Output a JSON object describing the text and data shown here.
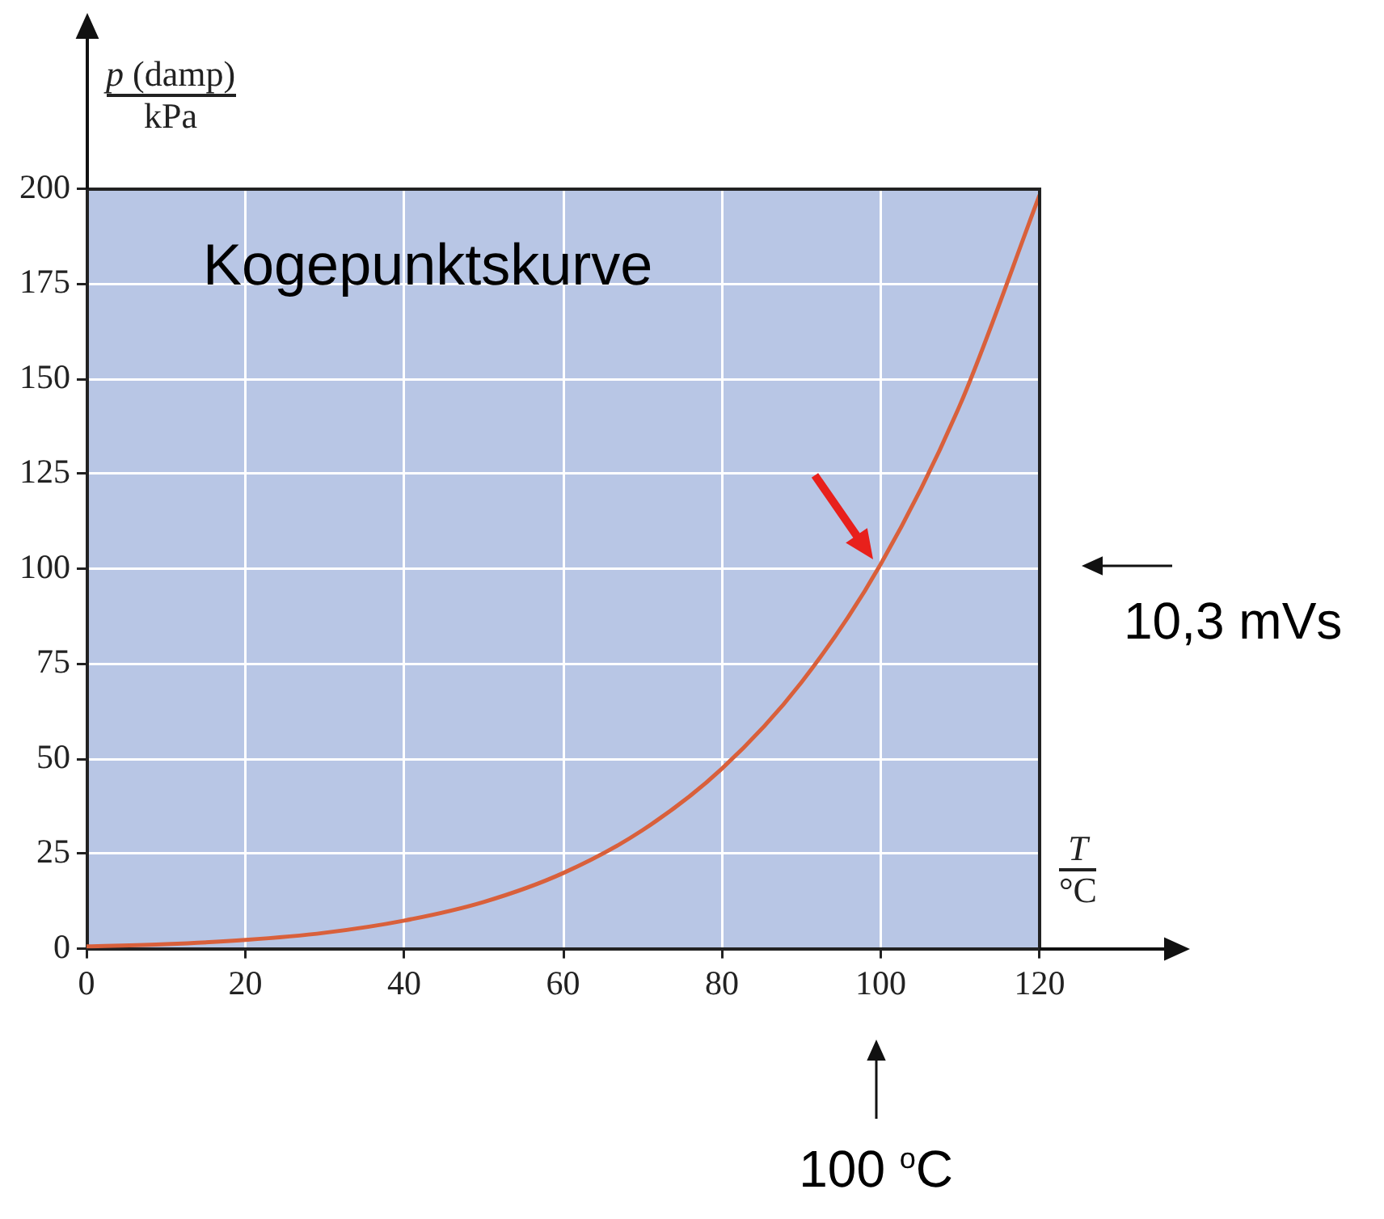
{
  "chart_data": {
    "type": "line",
    "title": "Kogepunktskurve",
    "xlabel": "T/°C",
    "ylabel": "p (damp)/kPa",
    "x": [
      0,
      10,
      20,
      30,
      40,
      50,
      60,
      70,
      80,
      90,
      100,
      110,
      120
    ],
    "series": [
      {
        "color": "#d9603b",
        "values": [
          0.6,
          1.2,
          2.3,
          4.2,
          7.4,
          12.3,
          19.9,
          31.2,
          47.4,
          70.1,
          101.3,
          143.3,
          198.5
        ]
      }
    ],
    "xlim": [
      0,
      120
    ],
    "xticks": [
      0,
      20,
      40,
      60,
      80,
      100,
      120
    ],
    "ylim": [
      0,
      200
    ],
    "yticks": [
      0,
      25,
      50,
      75,
      100,
      125,
      150,
      175,
      200
    ],
    "grid": true,
    "legend": false,
    "marker": "none",
    "line_style": "solid",
    "annotations": [
      "10,3 mVs",
      "100 $^{o}$C"
    ]
  }
}
